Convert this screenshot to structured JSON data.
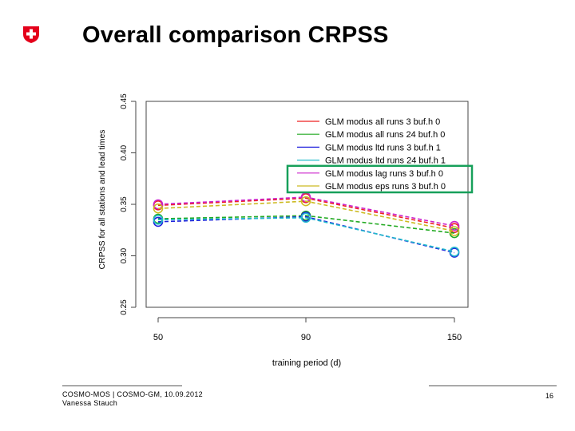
{
  "title": "Overall comparison CRPSS",
  "footer": {
    "line1": "COSMO-MOS | COSMO-GM, 10.09.2012",
    "line2": "Vanessa Stauch",
    "page": "16"
  },
  "colors": {
    "logo_red": "#e4001a",
    "highlight": "#17a05a"
  },
  "chart_data": {
    "type": "line",
    "title": "",
    "xlabel": "training period (d)",
    "ylabel": "CRPSS for all stations and lead times",
    "x": [
      50,
      90,
      150
    ],
    "xticks": [
      "50",
      "90",
      "150"
    ],
    "ylim": [
      0.25,
      0.45
    ],
    "yticks": [
      "0.25",
      "0.30",
      "0.35",
      "0.40",
      "0.45"
    ],
    "legend_position": "top-right",
    "highlighted_legend_entries": [
      4,
      5
    ],
    "series": [
      {
        "name": "GLM modus all runs 3 buf.h 0",
        "color": "#ee2222",
        "values": [
          0.349,
          0.356,
          0.327
        ]
      },
      {
        "name": "GLM modus all runs 24 buf.h 0",
        "color": "#22aa22",
        "values": [
          0.336,
          0.339,
          0.322
        ]
      },
      {
        "name": "GLM modus ltd runs 3 buf.h 1",
        "color": "#2222dd",
        "values": [
          0.333,
          0.338,
          0.303
        ]
      },
      {
        "name": "GLM modus ltd runs 24 buf.h 1",
        "color": "#22bbcc",
        "values": [
          0.335,
          0.337,
          0.304
        ]
      },
      {
        "name": "GLM modus lag runs 3 buf.h 0",
        "color": "#cc22cc",
        "values": [
          0.35,
          0.357,
          0.329
        ]
      },
      {
        "name": "GLM modus eps runs 3 buf.h 0",
        "color": "#ccbb22",
        "values": [
          0.346,
          0.353,
          0.324
        ]
      }
    ]
  }
}
